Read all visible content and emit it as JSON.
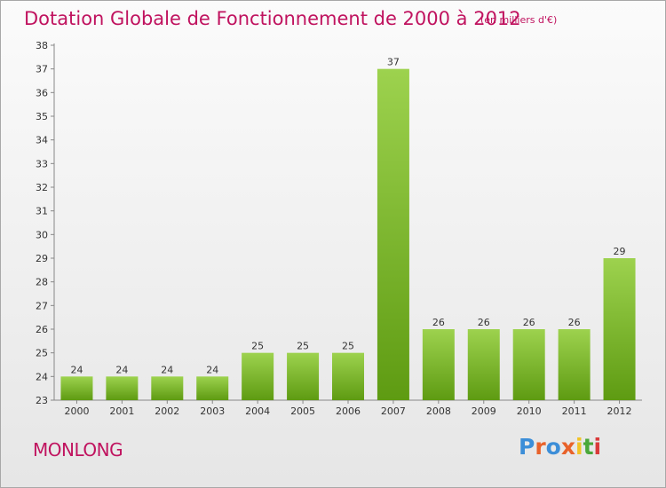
{
  "header": {
    "title": "Dotation Globale de Fonctionnement de 2000 à 2012",
    "unit": "(en milliers d'€)"
  },
  "footer": {
    "place": "MONLONG",
    "logo_text": "Proxiti"
  },
  "colors": {
    "title": "#c0135f",
    "bar_top": "#9dd24e",
    "bar_bottom": "#5e9b12",
    "logo": [
      "#3c8ed8",
      "#e8622a",
      "#3c8ed8",
      "#e8622a",
      "#f2c326",
      "#4aa83a",
      "#d93a3a"
    ]
  },
  "chart_data": {
    "type": "bar",
    "categories": [
      "2000",
      "2001",
      "2002",
      "2003",
      "2004",
      "2005",
      "2006",
      "2007",
      "2008",
      "2009",
      "2010",
      "2011",
      "2012"
    ],
    "values": [
      24,
      24,
      24,
      24,
      25,
      25,
      25,
      37,
      26,
      26,
      26,
      26,
      29
    ],
    "ylim": [
      23,
      38
    ],
    "yticks": [
      23,
      24,
      25,
      26,
      27,
      28,
      29,
      30,
      31,
      32,
      33,
      34,
      35,
      36,
      37,
      38
    ],
    "grid": false,
    "data_labels": true
  }
}
